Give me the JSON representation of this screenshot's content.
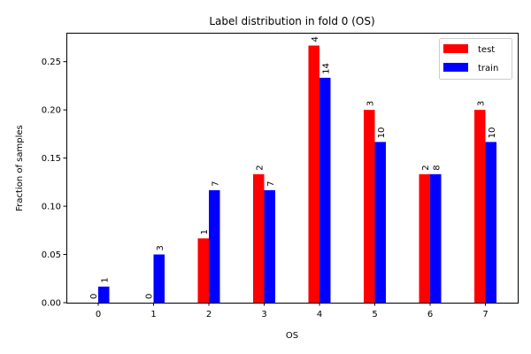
{
  "chart_data": {
    "type": "bar",
    "title": "Label distribution in fold 0 (OS)",
    "xlabel": "OS",
    "ylabel": "Fraction of samples",
    "categories": [
      "0",
      "1",
      "2",
      "3",
      "4",
      "5",
      "6",
      "7"
    ],
    "series": [
      {
        "name": "test",
        "color": "#ff0000",
        "values": [
          0.0,
          0.0,
          0.0667,
          0.1333,
          0.2667,
          0.2,
          0.1333,
          0.2
        ],
        "labels": [
          "0",
          "0",
          "1",
          "2",
          "4",
          "3",
          "2",
          "3"
        ]
      },
      {
        "name": "train",
        "color": "#0000ff",
        "values": [
          0.0167,
          0.05,
          0.1167,
          0.1167,
          0.2333,
          0.1667,
          0.1333,
          0.1667
        ],
        "labels": [
          "1",
          "3",
          "7",
          "7",
          "14",
          "10",
          "8",
          "10"
        ]
      }
    ],
    "yticks": [
      "0.00",
      "0.05",
      "0.10",
      "0.15",
      "0.20",
      "0.25"
    ],
    "ylim": [
      0,
      0.28
    ],
    "legend_position": "top-right",
    "grid": false
  }
}
